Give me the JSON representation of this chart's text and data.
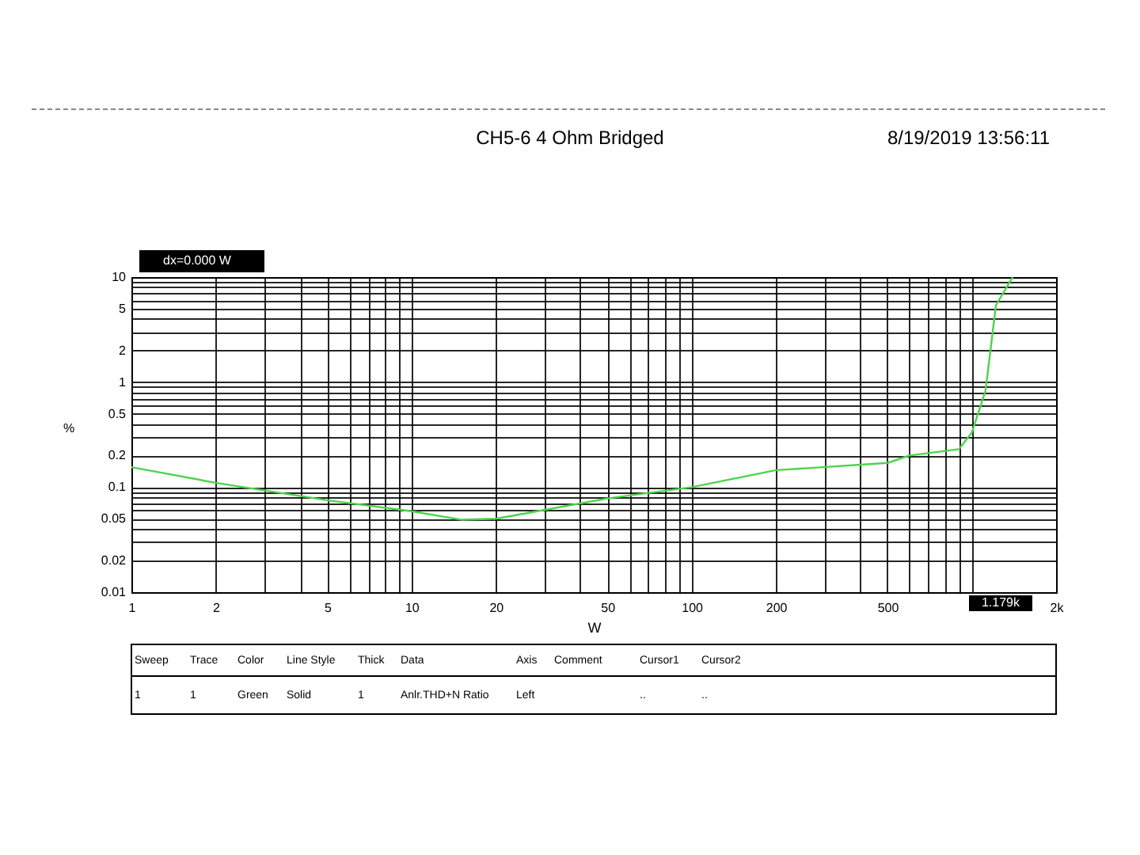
{
  "chart_data": {
    "type": "line",
    "title": "CH5-6 4 Ohm Bridged",
    "xlabel": "W",
    "ylabel": "%",
    "annotations": [
      "8/19/2019 13:56:11",
      "dx=0.000  W",
      "1.179k",
      "Sweep",
      "Trace",
      "Color",
      "Line Style",
      "Thick",
      "Data",
      "Axis",
      "Comment",
      "Cursor1",
      "Cursor2",
      "1",
      "1",
      "Green",
      "Solid",
      "1",
      "Anlr.THD+N Ratio",
      "Left",
      "..",
      ".."
    ],
    "log": "xy",
    "grid": true,
    "line_style": "solid",
    "marker": "none",
    "xlim": [
      1,
      2000
    ],
    "ylim": [
      0.01,
      10
    ],
    "xticks": [
      1,
      2,
      {
        "value": 3,
        "label": null
      },
      {
        "value": 4,
        "label": null
      },
      5,
      {
        "value": 6,
        "label": null
      },
      {
        "value": 7,
        "label": null
      },
      {
        "value": 8,
        "label": null
      },
      {
        "value": 9,
        "label": null
      },
      10,
      20,
      {
        "value": 30,
        "label": null
      },
      {
        "value": 40,
        "label": null
      },
      50,
      {
        "value": 60,
        "label": null
      },
      {
        "value": 70,
        "label": null
      },
      {
        "value": 80,
        "label": null
      },
      {
        "value": 90,
        "label": null
      },
      100,
      200,
      {
        "value": 300,
        "label": null
      },
      {
        "value": 400,
        "label": null
      },
      500,
      {
        "value": 600,
        "label": null
      },
      {
        "value": 700,
        "label": null
      },
      {
        "value": 800,
        "label": null
      },
      {
        "value": 900,
        "label": null
      },
      {
        "value": 1000,
        "label": null
      },
      {
        "value": 2000,
        "label": "2k"
      }
    ],
    "yticks": [
      0.01,
      0.02,
      {
        "value": 0.03,
        "label": null
      },
      {
        "value": 0.04,
        "label": null
      },
      0.05,
      {
        "value": 0.06,
        "label": null
      },
      {
        "value": 0.07,
        "label": null
      },
      {
        "value": 0.08,
        "label": null
      },
      {
        "value": 0.09,
        "label": null
      },
      0.1,
      0.2,
      {
        "value": 0.3,
        "label": null
      },
      {
        "value": 0.4,
        "label": null
      },
      0.5,
      {
        "value": 0.6,
        "label": null
      },
      {
        "value": 0.7,
        "label": null
      },
      {
        "value": 0.8,
        "label": null
      },
      {
        "value": 0.9,
        "label": null
      },
      1,
      2,
      {
        "value": 3,
        "label": null
      },
      {
        "value": 4,
        "label": null
      },
      5,
      {
        "value": 6,
        "label": null
      },
      {
        "value": 7,
        "label": null
      },
      {
        "value": 8,
        "label": null
      },
      {
        "value": 9,
        "label": null
      },
      10
    ],
    "x": [
      1,
      2,
      5,
      10,
      15,
      20,
      50,
      100,
      200,
      500,
      600,
      900,
      1000,
      1120,
      1220,
      1400
    ],
    "series": [
      {
        "color": "#4cd44c",
        "values": [
          0.155,
          0.11,
          0.075,
          0.059,
          0.049,
          0.05,
          0.078,
          0.1,
          0.145,
          0.17,
          0.2,
          0.23,
          0.33,
          0.83,
          5.4,
          10
        ]
      }
    ]
  }
}
